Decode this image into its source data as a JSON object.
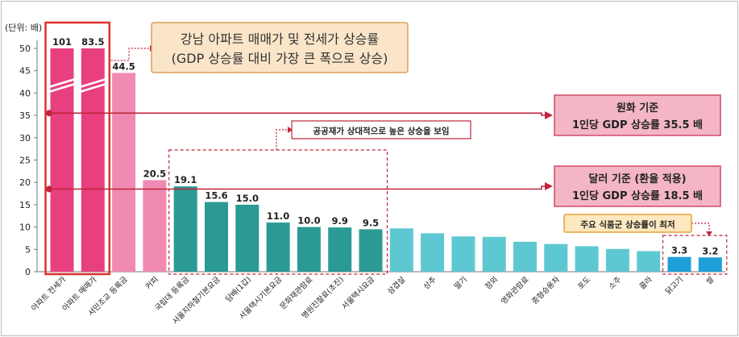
{
  "chart_data": {
    "type": "bar",
    "unit_label": "(단위: 배)",
    "ylim": [
      0,
      50
    ],
    "yticks": [
      0,
      5,
      10,
      15,
      20,
      25,
      30,
      35,
      40,
      45,
      50
    ],
    "categories": [
      "아파트 전세가",
      "아파트 매매가",
      "서민조교 등록금",
      "커피",
      "국립대 등록금",
      "서울지하철기본요금",
      "담배(1갑)",
      "서울택시기본요금",
      "문화재관람료",
      "병원진찰료(초진)",
      "서울택시요금",
      "삼겹살",
      "상추",
      "딸기",
      "참외",
      "영화관람료",
      "중형승용차",
      "포도",
      "소주",
      "콜라",
      "닭고기",
      "쌀"
    ],
    "values": [
      101,
      83.5,
      44.5,
      20.5,
      19.1,
      15.6,
      15.0,
      11.0,
      10.0,
      9.9,
      9.5,
      9.7,
      8.6,
      7.9,
      7.8,
      6.7,
      6.2,
      5.7,
      5.1,
      4.6,
      3.3,
      3.2
    ],
    "value_labels": [
      "101",
      "83.5",
      "44.5",
      "20.5",
      "19.1",
      "15.6",
      "15.0",
      "11.0",
      "10.0",
      "9.9",
      "9.5",
      "",
      "",
      "",
      "",
      "",
      "",
      "",
      "",
      "",
      "3.3",
      "3.2"
    ],
    "bar_colors": [
      "#e8407f",
      "#e8407f",
      "#f08ab2",
      "#f08ab2",
      "#2b9a95",
      "#2b9a95",
      "#2b9a95",
      "#2b9a95",
      "#2b9a95",
      "#2b9a95",
      "#2b9a95",
      "#5ec8d2",
      "#5ec8d2",
      "#5ec8d2",
      "#5ec8d2",
      "#5ec8d2",
      "#5ec8d2",
      "#5ec8d2",
      "#5ec8d2",
      "#5ec8d2",
      "#1f9fd8",
      "#1f9fd8"
    ],
    "reference_lines": [
      {
        "value": 35.5,
        "label_line1": "원화 기준",
        "label_line2": "1인당 GDP 상승률  35.5 배"
      },
      {
        "value": 18.5,
        "label_line1": "달러 기준 (환율 적용)",
        "label_line2": "1인당 GDP 상승률 18.5 배"
      }
    ],
    "annotations": {
      "top_box_line1": "강남 아파트 매매가 및 전세가 상승률",
      "top_box_line2": "(GDP 상승률 대비 가장 큰 폭으로 상승)",
      "public_box": "공공재가 상대적으로 높은 상승을 보임",
      "food_box": "주요 식품군 상승률이 최저"
    },
    "colors": {
      "axis": "#777777",
      "ref_line": "#c0243b",
      "top_box_fill": "#fbe5c8",
      "top_box_border": "#d9a05b",
      "pink_box_fill": "#f4b6c6",
      "pink_box_border": "#d04a6a",
      "red_frame": "#e0302a",
      "dashed": "#c0243b",
      "food_box_fill": "#fde8bf",
      "food_box_border": "#e2a33a"
    }
  }
}
